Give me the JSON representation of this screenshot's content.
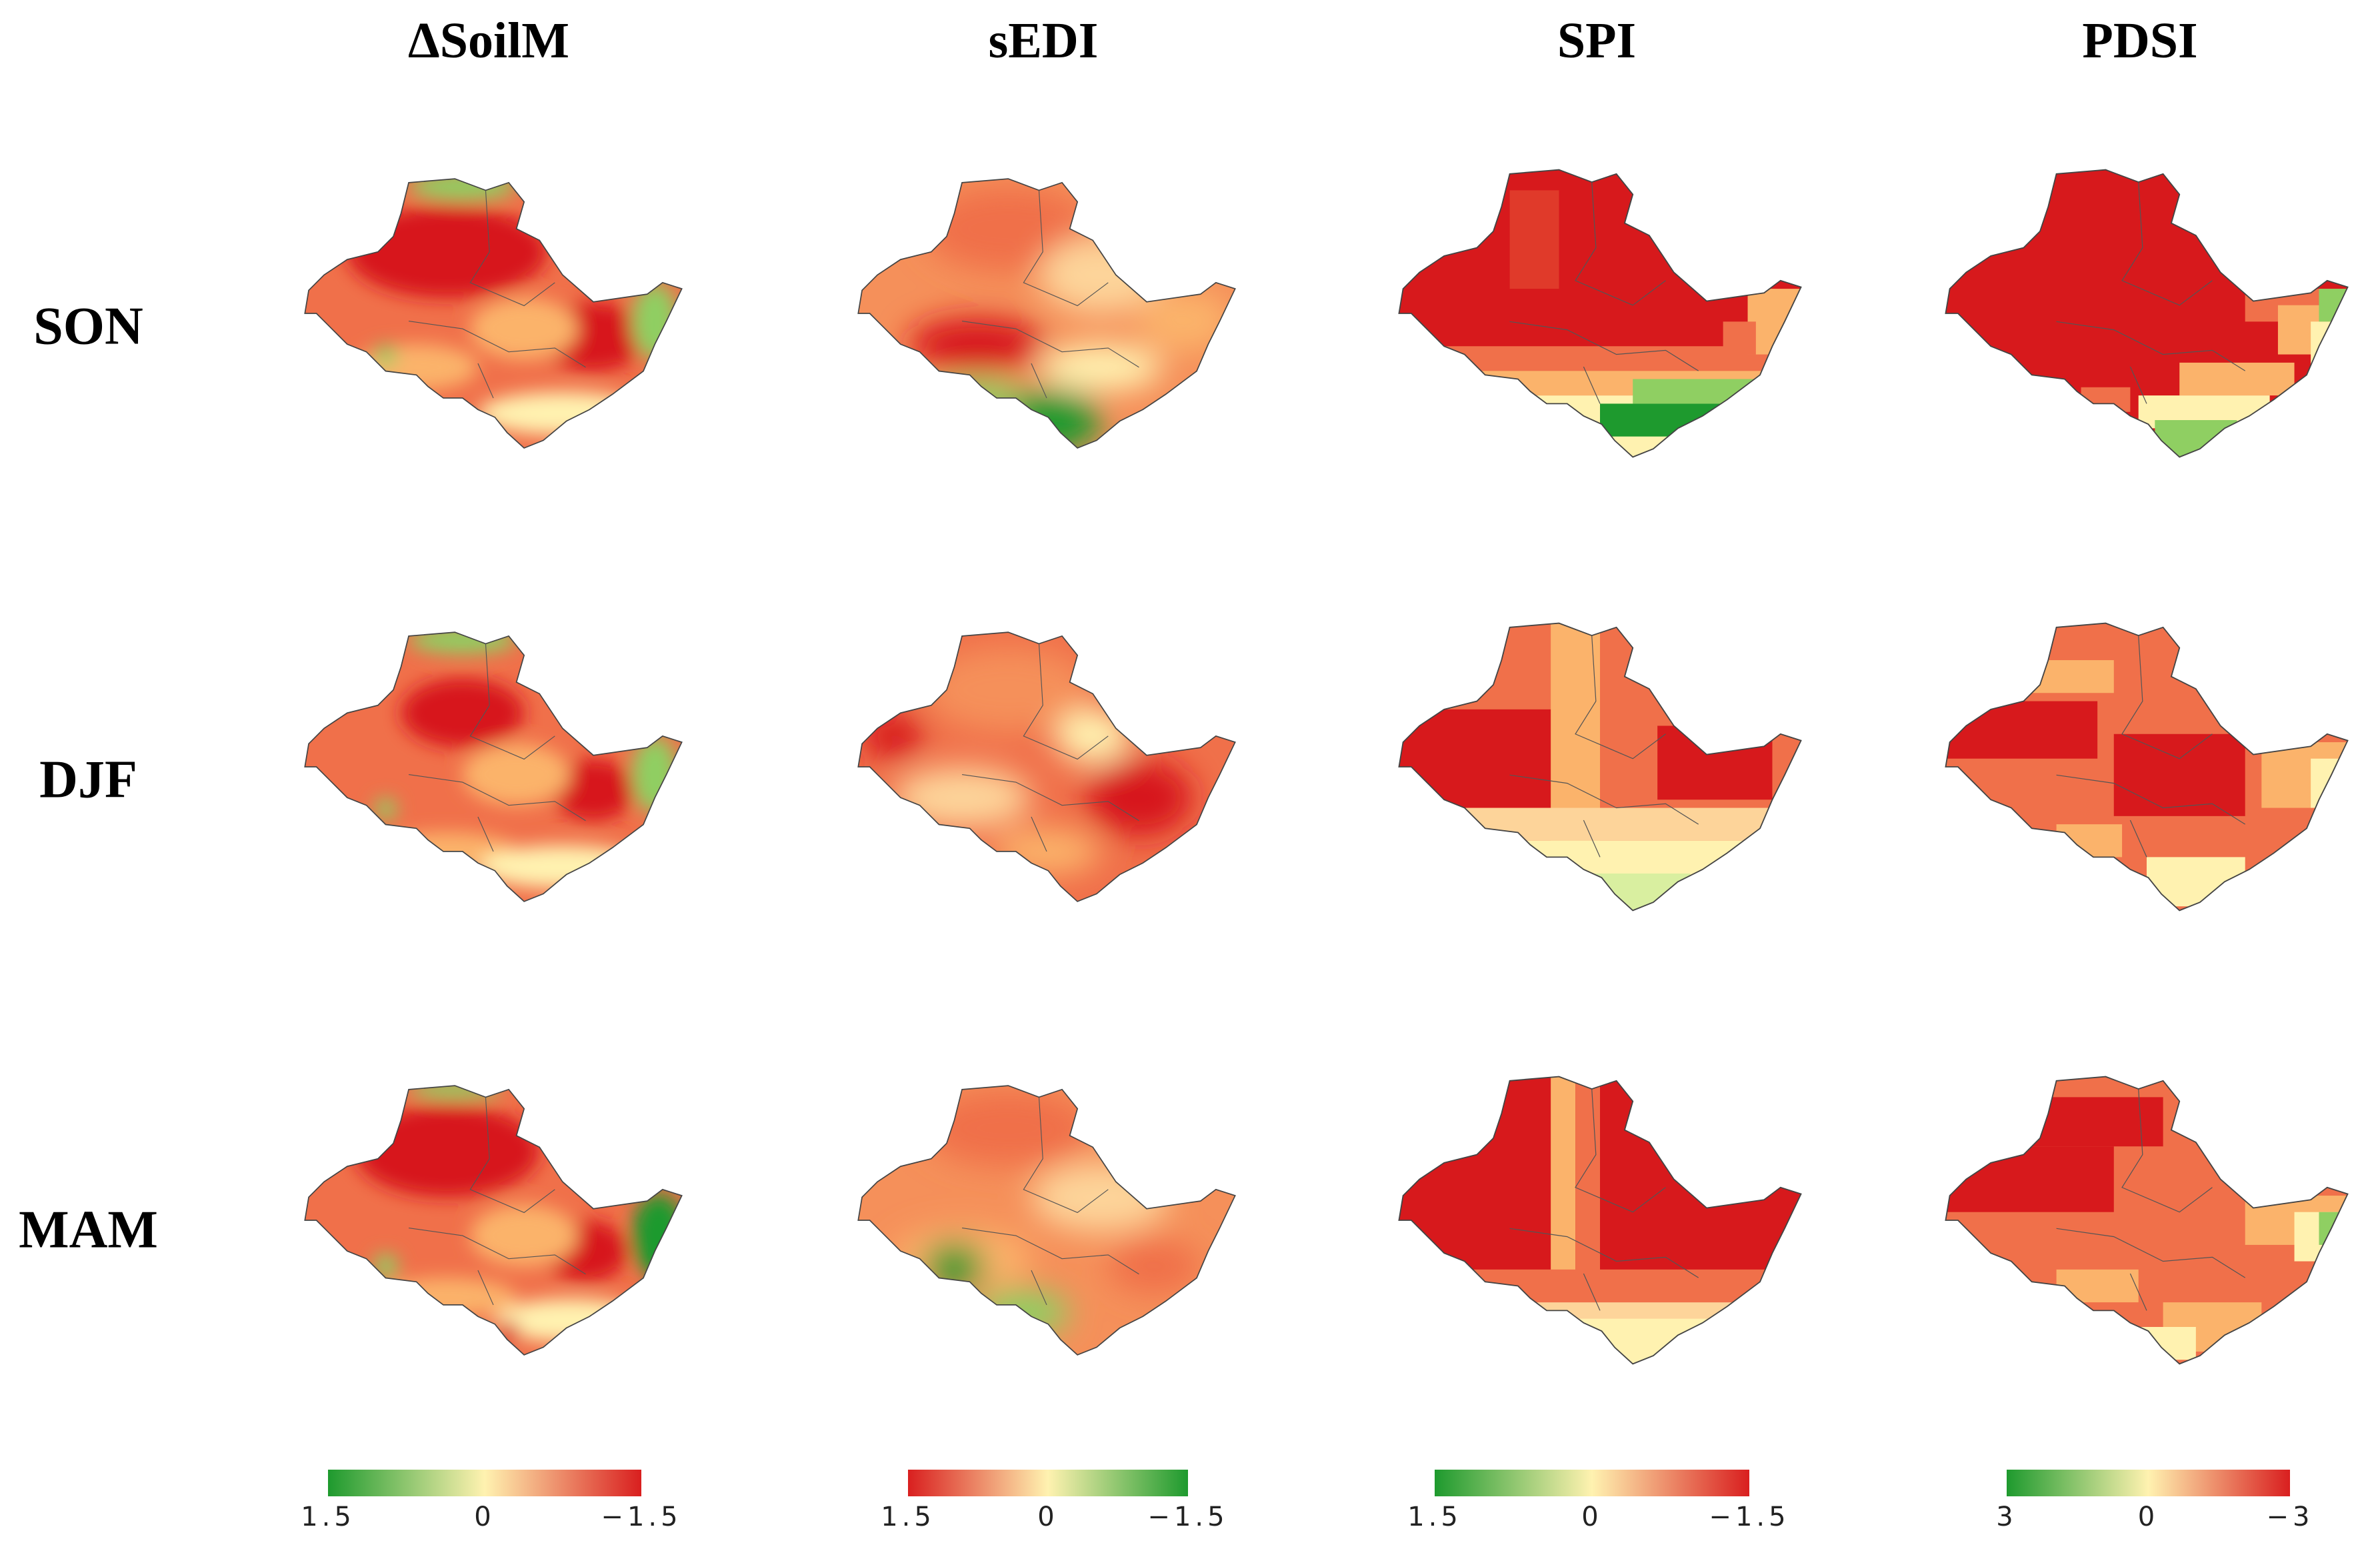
{
  "columns": [
    {
      "key": "dsoilm",
      "title": "ΔSoilM"
    },
    {
      "key": "sedi",
      "title": "sEDI"
    },
    {
      "key": "spi",
      "title": "SPI"
    },
    {
      "key": "pdsi",
      "title": "PDSI"
    }
  ],
  "rows": [
    {
      "key": "son",
      "label": "SON"
    },
    {
      "key": "djf",
      "label": "DJF"
    },
    {
      "key": "mam",
      "label": "MAM"
    }
  ],
  "colorbars": [
    {
      "panel": "dsoilm",
      "ticks": [
        "1.5",
        "0",
        "−1.5"
      ],
      "from": "#1e9a2e",
      "mid": "#fff2b0",
      "to": "#d91f1f"
    },
    {
      "panel": "sedi",
      "ticks": [
        "1.5",
        "0",
        "−1.5"
      ],
      "from": "#d91f1f",
      "mid": "#fff2b0",
      "to": "#1e9a2e"
    },
    {
      "panel": "spi",
      "ticks": [
        "1.5",
        "0",
        "−1.5"
      ],
      "from": "#1e9a2e",
      "mid": "#fff2b0",
      "to": "#d91f1f"
    },
    {
      "panel": "pdsi",
      "ticks": [
        "3",
        "0",
        "−3"
      ],
      "from": "#1e9a2e",
      "mid": "#fff2b0",
      "to": "#d91f1f"
    }
  ],
  "colors": {
    "dry": "#d7191c",
    "moderate": "#f0704a",
    "light": "#fbb36b",
    "neutral": "#fff2b0",
    "wet": "#8fcf62",
    "very_wet": "#1e9a2e",
    "border": "#444444"
  }
}
